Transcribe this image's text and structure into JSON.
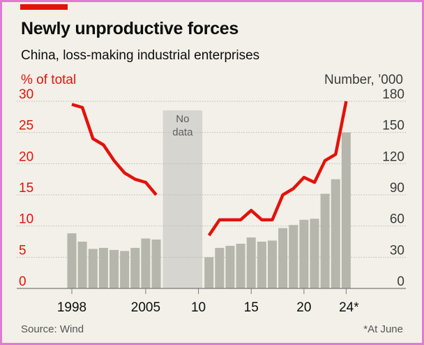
{
  "chart_data": {
    "type": "bar+line",
    "title": "Newly unproductive forces",
    "subtitle": "China, loss-making industrial enterprises",
    "left_axis": {
      "label": "% of total",
      "ticks": [
        0,
        5,
        10,
        15,
        20,
        25,
        30
      ],
      "range": [
        0,
        30
      ]
    },
    "right_axis": {
      "label": "Number, ’000",
      "ticks": [
        0,
        30,
        60,
        90,
        120,
        150,
        180
      ],
      "range": [
        0,
        180
      ]
    },
    "x_tick_labels": [
      {
        "year": 1998,
        "label": "1998"
      },
      {
        "year": 2005,
        "label": "2005"
      },
      {
        "year": 2010,
        "label": "10"
      },
      {
        "year": 2015,
        "label": "15"
      },
      {
        "year": 2020,
        "label": "20"
      },
      {
        "year": 2024,
        "label": "24*"
      }
    ],
    "no_data": {
      "from": 2006.5,
      "to": 2010.5,
      "label_line1": "No",
      "label_line2": "data"
    },
    "series": [
      {
        "name": "Number of loss-making enterprises ('000)",
        "type": "bar",
        "axis": "right",
        "color": "#b6b6ac",
        "points": [
          {
            "year": 1998,
            "value": 53
          },
          {
            "year": 1999,
            "value": 45
          },
          {
            "year": 2000,
            "value": 38
          },
          {
            "year": 2001,
            "value": 39
          },
          {
            "year": 2002,
            "value": 37
          },
          {
            "year": 2003,
            "value": 36
          },
          {
            "year": 2004,
            "value": 39
          },
          {
            "year": 2005,
            "value": 48
          },
          {
            "year": 2006,
            "value": 47
          },
          {
            "year": 2011,
            "value": 30
          },
          {
            "year": 2012,
            "value": 39
          },
          {
            "year": 2013,
            "value": 41
          },
          {
            "year": 2014,
            "value": 43
          },
          {
            "year": 2015,
            "value": 49
          },
          {
            "year": 2016,
            "value": 45
          },
          {
            "year": 2017,
            "value": 46
          },
          {
            "year": 2018,
            "value": 58
          },
          {
            "year": 2019,
            "value": 61
          },
          {
            "year": 2020,
            "value": 66
          },
          {
            "year": 2021,
            "value": 67
          },
          {
            "year": 2022,
            "value": 91
          },
          {
            "year": 2023,
            "value": 105
          },
          {
            "year": 2024,
            "value": 150
          }
        ]
      },
      {
        "name": "Loss-making enterprises, % of total",
        "type": "line",
        "axis": "left",
        "color": "#e3120b",
        "segments": [
          [
            {
              "year": 1998,
              "value": 29.5
            },
            {
              "year": 1999,
              "value": 29.0
            },
            {
              "year": 2000,
              "value": 24.0
            },
            {
              "year": 2001,
              "value": 23.0
            },
            {
              "year": 2002,
              "value": 20.5
            },
            {
              "year": 2003,
              "value": 18.5
            },
            {
              "year": 2004,
              "value": 17.5
            },
            {
              "year": 2005,
              "value": 17.0
            },
            {
              "year": 2006,
              "value": 15.0
            }
          ],
          [
            {
              "year": 2011,
              "value": 8.5
            },
            {
              "year": 2012,
              "value": 11.0
            },
            {
              "year": 2013,
              "value": 11.0
            },
            {
              "year": 2014,
              "value": 11.0
            },
            {
              "year": 2015,
              "value": 12.5
            },
            {
              "year": 2016,
              "value": 11.0
            },
            {
              "year": 2017,
              "value": 11.0
            },
            {
              "year": 2018,
              "value": 15.0
            },
            {
              "year": 2019,
              "value": 16.0
            },
            {
              "year": 2020,
              "value": 17.8
            },
            {
              "year": 2021,
              "value": 17.0
            },
            {
              "year": 2022,
              "value": 20.5
            },
            {
              "year": 2023,
              "value": 21.5
            },
            {
              "year": 2024,
              "value": 30.0
            }
          ]
        ]
      }
    ]
  },
  "header": {
    "title": "Newly unproductive forces",
    "subtitle": "China, loss-making industrial enterprises",
    "left_unit": "% of total",
    "right_unit": "Number, ’000"
  },
  "footer": {
    "source": "Source: Wind",
    "note": "*At June"
  },
  "colors": {
    "background": "#f2f0e8",
    "accent": "#e3120b",
    "bar": "#b6b6ac",
    "no_data_band": "#d6d5cf",
    "grid": "#b9b9b9"
  }
}
